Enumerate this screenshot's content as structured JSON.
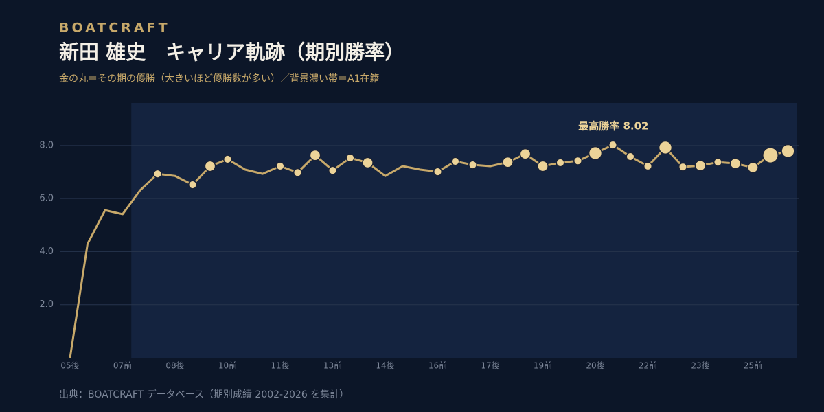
{
  "brand": "BOATCRAFT",
  "chart_data": {
    "type": "line",
    "title": "新田 雄史　キャリア軌跡（期別勝率）",
    "subtitle": "金の丸＝その期の優勝（大きいほど優勝数が多い）／背景濃い帯＝A1在籍",
    "annotation": "最高勝率 8.02",
    "source": "出典：BOATCRAFT データベース（期別成績 2002-2026 を集計）",
    "categories": [
      "05後",
      null,
      null,
      "07前",
      null,
      null,
      "08後",
      null,
      null,
      "10前",
      null,
      null,
      "11後",
      null,
      null,
      "13前",
      null,
      null,
      "14後",
      null,
      null,
      "16前",
      null,
      null,
      "17後",
      null,
      null,
      "19前",
      null,
      null,
      "20後",
      null,
      null,
      "22前",
      null,
      null,
      "23後",
      null,
      null,
      "25前",
      null,
      null
    ],
    "values": [
      0,
      4.29,
      5.56,
      5.41,
      6.31,
      6.93,
      6.85,
      6.52,
      7.22,
      7.48,
      7.09,
      6.93,
      7.22,
      6.98,
      7.63,
      7.06,
      7.53,
      7.35,
      6.85,
      7.22,
      7.09,
      7.01,
      7.4,
      7.27,
      7.22,
      7.37,
      7.68,
      7.22,
      7.35,
      7.42,
      7.71,
      8.02,
      7.58,
      7.22,
      7.92,
      7.19,
      7.24,
      7.37,
      7.32,
      7.17,
      7.63,
      7.79
    ],
    "wins": [
      null,
      null,
      null,
      null,
      null,
      1,
      null,
      1,
      2,
      1,
      null,
      null,
      1,
      1,
      2,
      1,
      1,
      2,
      null,
      null,
      null,
      1,
      1,
      1,
      null,
      2,
      2,
      2,
      1,
      1,
      3,
      1,
      1,
      1,
      3,
      1,
      2,
      1,
      2,
      2,
      4,
      3
    ],
    "a1_band": [
      4,
      41
    ],
    "color": "#c8a96a",
    "dot_color": "#ecd398",
    "band_color": "#14233f",
    "ylim": [
      0,
      9.6
    ],
    "yticks": [
      {
        "value": 2,
        "label": "2.0"
      },
      {
        "value": 4,
        "label": "4.0"
      },
      {
        "value": 6,
        "label": "6.0"
      },
      {
        "value": 8,
        "label": "8.0"
      }
    ],
    "grid": true
  }
}
